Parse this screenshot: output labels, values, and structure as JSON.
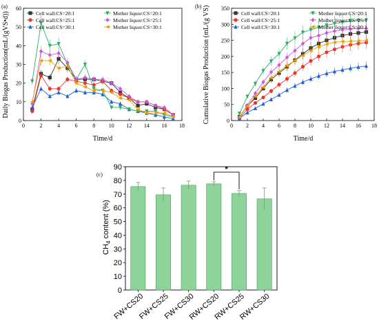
{
  "chart_data": [
    {
      "panel": "(a)",
      "type": "line",
      "xlabel": "Time/d",
      "ylabel": "Daily Biogas Production(mL/(gVS•d))",
      "xlim": [
        0,
        18
      ],
      "ylim": [
        0,
        60
      ],
      "xticks": [
        0,
        2,
        4,
        6,
        8,
        10,
        12,
        14,
        16,
        18
      ],
      "yticks": [
        0,
        10,
        20,
        30,
        40,
        50,
        60
      ],
      "legend": "top-right",
      "x": [
        1,
        2,
        3,
        4,
        5,
        6,
        7,
        8,
        9,
        10,
        11,
        12,
        13,
        14,
        15,
        16,
        17
      ],
      "series": [
        {
          "name": "Cell wall:CS=20:1",
          "color": "#333333",
          "marker": "square",
          "values": [
            6,
            25,
            23,
            33,
            28,
            22,
            22,
            22,
            21,
            20,
            15,
            12,
            8,
            9,
            7,
            6,
            3
          ]
        },
        {
          "name": "Cell wall:CS=25:1",
          "color": "#e8362c",
          "marker": "circle",
          "values": [
            5,
            24,
            17,
            17,
            22,
            21,
            20,
            19,
            21,
            16,
            14,
            12,
            10,
            10,
            8,
            6,
            3
          ]
        },
        {
          "name": "Cell wall:CS=30:1",
          "color": "#1f5fd6",
          "marker": "triangle-up",
          "values": [
            7,
            17,
            13,
            15,
            13,
            16,
            15,
            15,
            14,
            10,
            9,
            6,
            5,
            4,
            3,
            2,
            1
          ]
        },
        {
          "name": "Mother liquor:CS=20:1",
          "color": "#27ae60",
          "marker": "triangle-down",
          "values": [
            21,
            52,
            40,
            41,
            30,
            22,
            30,
            17,
            16,
            7,
            7,
            6,
            5,
            5,
            5,
            3,
            2
          ]
        },
        {
          "name": "Mother liquor:CS=25:1",
          "color": "#cc55dd",
          "marker": "diamond",
          "values": [
            9,
            37,
            35,
            36,
            31,
            22,
            23,
            22,
            22,
            20,
            17,
            13,
            10,
            10,
            8,
            7,
            3
          ]
        },
        {
          "name": "Mother liquor:CS=30:1",
          "color": "#e8a000",
          "marker": "triangle-left",
          "values": [
            10,
            32,
            32,
            28,
            29,
            20,
            18,
            16,
            16,
            15,
            12,
            11,
            6,
            4,
            4,
            4,
            2
          ]
        }
      ]
    },
    {
      "panel": "(b)",
      "type": "line",
      "xlabel": "Time/d",
      "ylabel": "Cumulative Biogas Production (mL/(g VS)",
      "xlim": [
        0,
        18
      ],
      "ylim": [
        0,
        350
      ],
      "xticks": [
        0,
        2,
        4,
        6,
        8,
        10,
        12,
        14,
        16,
        18
      ],
      "yticks": [
        0,
        50,
        100,
        150,
        200,
        250,
        300,
        350
      ],
      "legend": "top-left",
      "x": [
        1,
        2,
        3,
        4,
        5,
        6,
        7,
        8,
        9,
        10,
        11,
        12,
        13,
        14,
        15,
        16,
        17
      ],
      "series": [
        {
          "name": "Cell wall:CS=20:1",
          "color": "#333333",
          "marker": "square",
          "values": [
            12,
            45,
            70,
            100,
            128,
            148,
            168,
            188,
            208,
            226,
            240,
            250,
            258,
            265,
            270,
            273,
            276
          ]
        },
        {
          "name": "Cell wall:CS=25:1",
          "color": "#e8362c",
          "marker": "circle",
          "values": [
            8,
            35,
            55,
            72,
            92,
            112,
            130,
            148,
            168,
            186,
            200,
            213,
            222,
            230,
            236,
            240,
            243
          ]
        },
        {
          "name": "Cell wall:CS=30:1",
          "color": "#1f5fd6",
          "marker": "triangle-up",
          "values": [
            7,
            25,
            38,
            52,
            66,
            80,
            95,
            108,
            120,
            130,
            139,
            147,
            153,
            158,
            163,
            167,
            170
          ]
        },
        {
          "name": "Mother liquor:CS=20:1",
          "color": "#27ae60",
          "marker": "triangle-down",
          "values": [
            22,
            75,
            115,
            155,
            185,
            208,
            240,
            257,
            275,
            283,
            290,
            297,
            302,
            306,
            310,
            312,
            313
          ]
        },
        {
          "name": "Mother liquor:CS=25:1",
          "color": "#cc55dd",
          "marker": "diamond",
          "values": [
            10,
            48,
            85,
            120,
            151,
            173,
            197,
            218,
            240,
            258,
            265,
            273,
            279,
            283,
            285,
            287,
            287
          ]
        },
        {
          "name": "Mother liquor:CS=30:1",
          "color": "#e8a000",
          "marker": "triangle-left",
          "values": [
            12,
            44,
            76,
            104,
            133,
            153,
            171,
            187,
            203,
            218,
            230,
            238,
            244,
            246,
            247,
            248,
            250
          ]
        }
      ]
    },
    {
      "panel": "(c)",
      "type": "bar",
      "ylabel_main": "CH",
      "ylabel_sub": "4",
      "ylabel_rest": " content (%)",
      "ylim": [
        0,
        90
      ],
      "yticks": [
        0,
        10,
        20,
        30,
        40,
        50,
        60,
        70,
        80,
        90
      ],
      "categories": [
        "FW+CS20",
        "FW+CS25",
        "FW+CS30",
        "RW+CS20",
        "RW+CS25",
        "RW+CS30"
      ],
      "values": [
        75.5,
        69.5,
        76.5,
        77.5,
        70.5,
        66.5
      ],
      "errors": [
        3,
        5,
        3,
        1.5,
        2,
        8
      ],
      "bar_color": "#8ed49a",
      "bar_edge": "#4a9a5a",
      "significance": {
        "from": 3,
        "to": 4,
        "label": "*"
      }
    }
  ]
}
